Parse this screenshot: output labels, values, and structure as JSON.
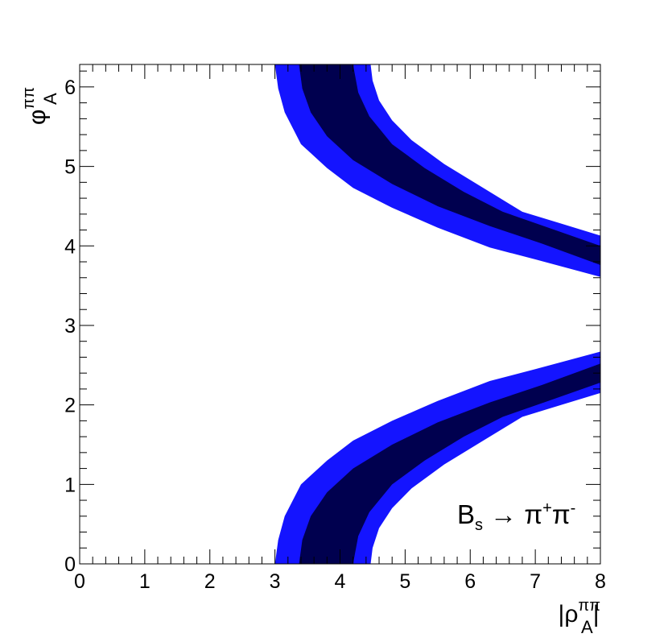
{
  "chart_data": {
    "type": "contour",
    "x_label": {
      "main": "|ρ",
      "sup": "ππ",
      "sub": "A",
      "end": "|"
    },
    "y_label": {
      "main": "φ",
      "sup": "ππ",
      "sub": "A"
    },
    "annotation": [
      {
        "text": "B",
        "script": "base"
      },
      {
        "text": "s",
        "script": "sub"
      },
      {
        "text": " → π",
        "script": "base"
      },
      {
        "text": "+",
        "script": "sup"
      },
      {
        "text": "π",
        "script": "base"
      },
      {
        "text": "-",
        "script": "sup"
      }
    ],
    "xlim": [
      0,
      8
    ],
    "ylim": [
      0,
      6.283
    ],
    "xticks": [
      0,
      1,
      2,
      3,
      4,
      5,
      6,
      7,
      8
    ],
    "yticks": [
      0,
      1,
      2,
      3,
      4,
      5,
      6
    ],
    "regions": [
      {
        "color": "#1414ff",
        "x": [
          3.0,
          3.05,
          3.15,
          3.4,
          3.8,
          4.2,
          4.8,
          5.5,
          6.3,
          7.0,
          8,
          8,
          7.4,
          6.8,
          6.2,
          5.6,
          5.1,
          4.8,
          4.6,
          4.5,
          4.47
        ],
        "y": [
          0,
          0.3,
          0.6,
          1.0,
          1.3,
          1.55,
          1.8,
          2.05,
          2.3,
          2.45,
          2.67,
          2.15,
          2.0,
          1.85,
          1.55,
          1.25,
          0.95,
          0.7,
          0.45,
          0.2,
          0
        ]
      },
      {
        "color": "#00004f",
        "x": [
          3.37,
          3.42,
          3.55,
          3.8,
          4.2,
          4.8,
          5.5,
          6.3,
          7.1,
          8,
          8,
          7.2,
          6.5,
          5.9,
          5.3,
          4.8,
          4.45,
          4.28,
          4.2
        ],
        "y": [
          0,
          0.3,
          0.6,
          0.9,
          1.2,
          1.5,
          1.78,
          2.03,
          2.25,
          2.52,
          2.28,
          2.05,
          1.85,
          1.6,
          1.3,
          1.0,
          0.65,
          0.35,
          0
        ]
      },
      {
        "color": "#1414ff",
        "x": [
          3.0,
          3.05,
          3.15,
          3.4,
          3.8,
          4.2,
          4.8,
          5.5,
          6.3,
          7.0,
          8,
          8,
          7.4,
          6.8,
          6.2,
          5.6,
          5.1,
          4.8,
          4.6,
          4.5,
          4.47
        ],
        "y": [
          6.28,
          5.98,
          5.68,
          5.28,
          4.98,
          4.73,
          4.48,
          4.23,
          3.98,
          3.83,
          3.61,
          4.13,
          4.28,
          4.43,
          4.73,
          5.03,
          5.33,
          5.58,
          5.83,
          6.08,
          6.28
        ]
      },
      {
        "color": "#00004f",
        "x": [
          3.37,
          3.42,
          3.55,
          3.8,
          4.2,
          4.8,
          5.5,
          6.3,
          7.1,
          8,
          8,
          7.2,
          6.5,
          5.9,
          5.3,
          4.8,
          4.45,
          4.28,
          4.2
        ],
        "y": [
          6.28,
          5.98,
          5.68,
          5.38,
          5.08,
          4.78,
          4.5,
          4.25,
          4.03,
          3.76,
          4.0,
          4.23,
          4.43,
          4.68,
          4.98,
          5.28,
          5.63,
          5.93,
          6.28
        ]
      }
    ]
  }
}
